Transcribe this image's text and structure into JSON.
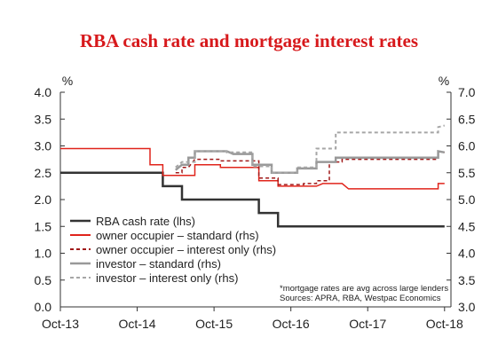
{
  "chart_data": {
    "type": "line",
    "title": "RBA cash rate and mortgage interest rates",
    "left_unit": "%",
    "right_unit": "%",
    "ylim_left": [
      0.0,
      4.0
    ],
    "ylim_right": [
      3.0,
      7.0
    ],
    "yticks_left": [
      "0.0",
      "0.5",
      "1.0",
      "1.5",
      "2.0",
      "2.5",
      "3.0",
      "3.5",
      "4.0"
    ],
    "yticks_right": [
      "3.0",
      "3.5",
      "4.0",
      "4.5",
      "5.0",
      "5.5",
      "6.0",
      "6.5",
      "7.0"
    ],
    "x_range": [
      "2013-10",
      "2018-11"
    ],
    "xticks": [
      {
        "label": "Oct-13",
        "date": "2013-10"
      },
      {
        "label": "Oct-14",
        "date": "2014-10"
      },
      {
        "label": "Oct-15",
        "date": "2015-10"
      },
      {
        "label": "Oct-16",
        "date": "2016-10"
      },
      {
        "label": "Oct-17",
        "date": "2017-10"
      },
      {
        "label": "Oct-18",
        "date": "2018-10"
      }
    ],
    "grid": false,
    "legend_position": "bottom-left",
    "series": [
      {
        "name": "RBA cash rate (lhs)",
        "axis": "left",
        "color": "#333333",
        "dash": "solid",
        "width": 2.5,
        "points": [
          [
            "2013-10",
            2.5
          ],
          [
            "2015-02",
            2.5
          ],
          [
            "2015-02",
            2.25
          ],
          [
            "2015-05",
            2.25
          ],
          [
            "2015-05",
            2.0
          ],
          [
            "2016-05",
            2.0
          ],
          [
            "2016-05",
            1.75
          ],
          [
            "2016-08",
            1.75
          ],
          [
            "2016-08",
            1.5
          ],
          [
            "2018-10",
            1.5
          ]
        ]
      },
      {
        "name": "owner occupier – standard (rhs)",
        "axis": "right",
        "color": "#e0241b",
        "dash": "solid",
        "width": 1.5,
        "points": [
          [
            "2013-10",
            5.95
          ],
          [
            "2014-12",
            5.95
          ],
          [
            "2014-12",
            5.65
          ],
          [
            "2015-02",
            5.65
          ],
          [
            "2015-02",
            5.45
          ],
          [
            "2015-06",
            5.45
          ],
          [
            "2015-07",
            5.45
          ],
          [
            "2015-07",
            5.65
          ],
          [
            "2015-11",
            5.65
          ],
          [
            "2015-11",
            5.6
          ],
          [
            "2016-05",
            5.6
          ],
          [
            "2016-05",
            5.35
          ],
          [
            "2016-08",
            5.35
          ],
          [
            "2016-08",
            5.25
          ],
          [
            "2017-02",
            5.25
          ],
          [
            "2017-03",
            5.3
          ],
          [
            "2017-06",
            5.3
          ],
          [
            "2017-07",
            5.2
          ],
          [
            "2018-09",
            5.2
          ],
          [
            "2018-09",
            5.3
          ],
          [
            "2018-10",
            5.3
          ]
        ]
      },
      {
        "name": "owner occupier – interest only (rhs)",
        "axis": "right",
        "color": "#a01818",
        "dash": "dashed",
        "width": 1.5,
        "points": [
          [
            "2015-04",
            5.5
          ],
          [
            "2015-05",
            5.5
          ],
          [
            "2015-05",
            5.6
          ],
          [
            "2015-06",
            5.6
          ],
          [
            "2015-07",
            5.75
          ],
          [
            "2015-11",
            5.75
          ],
          [
            "2015-11",
            5.72
          ],
          [
            "2016-05",
            5.72
          ],
          [
            "2016-05",
            5.4
          ],
          [
            "2016-08",
            5.4
          ],
          [
            "2016-08",
            5.28
          ],
          [
            "2016-12",
            5.28
          ],
          [
            "2016-12",
            5.3
          ],
          [
            "2017-02",
            5.3
          ],
          [
            "2017-02",
            5.35
          ],
          [
            "2017-04",
            5.35
          ],
          [
            "2017-04",
            5.7
          ],
          [
            "2017-06",
            5.7
          ],
          [
            "2017-06",
            5.75
          ],
          [
            "2018-09",
            5.75
          ],
          [
            "2018-09",
            5.9
          ],
          [
            "2018-10",
            5.88
          ]
        ]
      },
      {
        "name": "investor – standard (rhs)",
        "axis": "right",
        "color": "#999999",
        "dash": "solid",
        "width": 2.5,
        "points": [
          [
            "2015-04",
            5.55
          ],
          [
            "2015-05",
            5.65
          ],
          [
            "2015-06",
            5.65
          ],
          [
            "2015-06",
            5.78
          ],
          [
            "2015-07",
            5.78
          ],
          [
            "2015-07",
            5.9
          ],
          [
            "2015-12",
            5.9
          ],
          [
            "2016-01",
            5.85
          ],
          [
            "2016-04",
            5.85
          ],
          [
            "2016-04",
            5.65
          ],
          [
            "2016-07",
            5.65
          ],
          [
            "2016-07",
            5.5
          ],
          [
            "2016-11",
            5.5
          ],
          [
            "2016-11",
            5.58
          ],
          [
            "2017-02",
            5.58
          ],
          [
            "2017-02",
            5.7
          ],
          [
            "2017-05",
            5.7
          ],
          [
            "2017-05",
            5.78
          ],
          [
            "2018-09",
            5.78
          ],
          [
            "2018-09",
            5.9
          ],
          [
            "2018-10",
            5.88
          ]
        ]
      },
      {
        "name": "investor – interest only (rhs)",
        "axis": "right",
        "color": "#a6a6a6",
        "dash": "dashed",
        "width": 2.0,
        "points": [
          [
            "2015-04",
            5.6
          ],
          [
            "2015-05",
            5.7
          ],
          [
            "2015-07",
            5.7
          ],
          [
            "2015-07",
            5.9
          ],
          [
            "2015-12",
            5.9
          ],
          [
            "2015-12",
            5.88
          ],
          [
            "2016-04",
            5.88
          ],
          [
            "2016-04",
            5.62
          ],
          [
            "2016-07",
            5.62
          ],
          [
            "2016-07",
            5.5
          ],
          [
            "2016-11",
            5.5
          ],
          [
            "2016-11",
            5.6
          ],
          [
            "2017-02",
            5.6
          ],
          [
            "2017-02",
            5.95
          ],
          [
            "2017-05",
            5.95
          ],
          [
            "2017-05",
            6.25
          ],
          [
            "2018-09",
            6.25
          ],
          [
            "2018-09",
            6.35
          ],
          [
            "2018-10",
            6.38
          ]
        ]
      }
    ],
    "annotations": [
      "*mortgage rates are avg across large lenders",
      "Sources: APRA, RBA, Westpac Economics"
    ]
  }
}
